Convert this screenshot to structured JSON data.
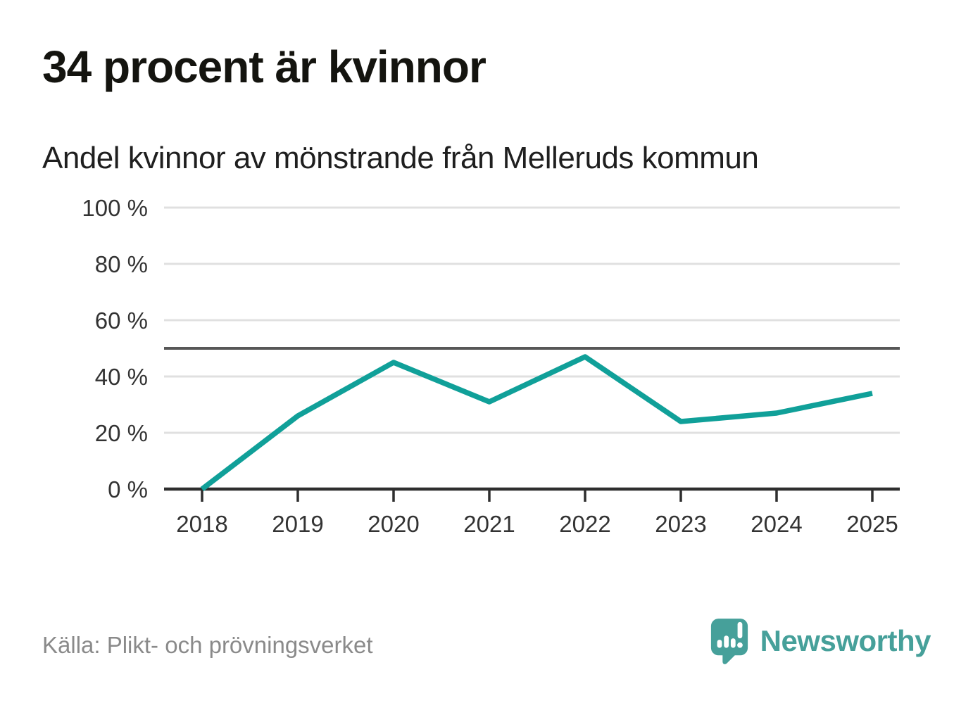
{
  "header": {
    "title": "34 procent är kvinnor",
    "subtitle": "Andel kvinnor av mönstrande från Melleruds kommun"
  },
  "footer": {
    "source": "Källa: Plikt- och prövningsverket",
    "brand": "Newsworthy"
  },
  "colors": {
    "line": "#10a099",
    "reference_line": "#575757",
    "grid": "#e0e0e0",
    "axis": "#2e2e2e",
    "tick_label": "#333333",
    "source_text": "#8a8a8a",
    "brand_teal": "#46a09a"
  },
  "chart_data": {
    "type": "line",
    "title": "34 procent är kvinnor",
    "subtitle": "Andel kvinnor av mönstrande från Melleruds kommun",
    "x": [
      2018,
      2019,
      2020,
      2021,
      2022,
      2023,
      2024,
      2025
    ],
    "series": [
      {
        "name": "Andel kvinnor av mönstrande (%)",
        "values": [
          0,
          26,
          45,
          31,
          47,
          24,
          27,
          34
        ]
      }
    ],
    "unit": "%",
    "ylim": [
      0,
      100
    ],
    "yticks": [
      0,
      20,
      40,
      60,
      80,
      100
    ],
    "ytick_labels": [
      "0 %",
      "20 %",
      "40 %",
      "60 %",
      "80 %",
      "100 %"
    ],
    "xtick_labels": [
      "2018",
      "2019",
      "2020",
      "2021",
      "2022",
      "2023",
      "2024",
      "2025"
    ],
    "reference_line": 50,
    "grid": true,
    "legend": "none"
  }
}
